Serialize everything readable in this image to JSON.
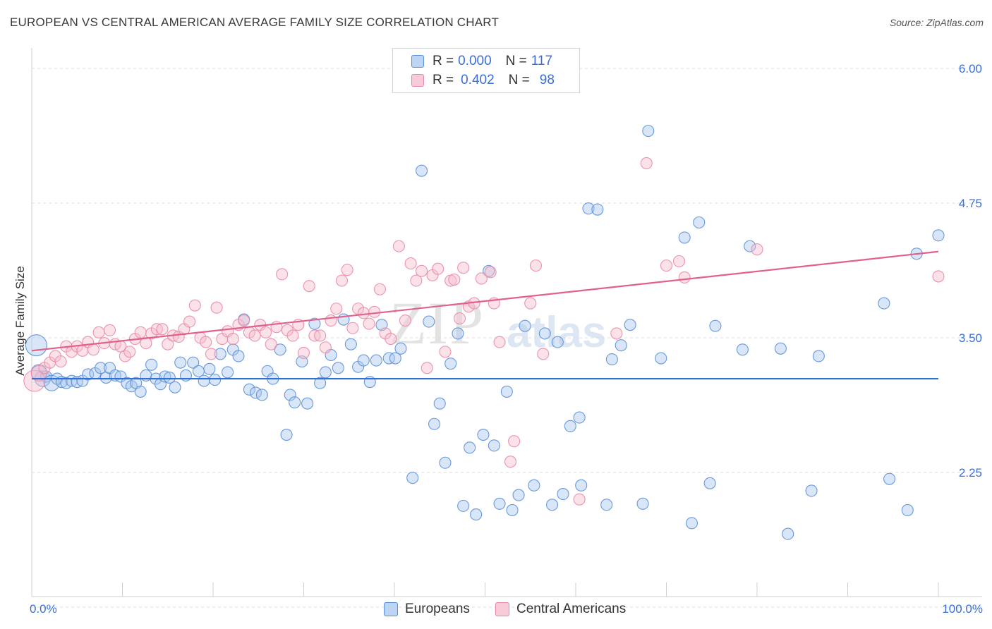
{
  "title": "EUROPEAN VS CENTRAL AMERICAN AVERAGE FAMILY SIZE CORRELATION CHART",
  "source": "Source: ZipAtlas.com",
  "watermark": {
    "zip": "ZIP",
    "atlas": "atlas"
  },
  "legend": {
    "rows": [
      {
        "r_label": "R =",
        "r_value": "0.000",
        "n_label": "N =",
        "n_value": "117",
        "color": "#a9c8f0"
      },
      {
        "r_label": "R =",
        "r_value": "0.402",
        "n_label": "N =",
        "n_value": "98",
        "color": "#f4b6c8"
      }
    ]
  },
  "bottom_legend": {
    "europeans": "Europeans",
    "central_americans": "Central Americans"
  },
  "colors": {
    "blue_fill": "#a9c8f0",
    "blue_stroke": "#5b8fd8",
    "blue_line": "#2f6fd6",
    "pink_fill": "#f6bccd",
    "pink_stroke": "#e88aa6",
    "pink_line": "#e0628c",
    "axis_text": "#3a6fd8",
    "grid": "#dedede"
  },
  "chart_data": {
    "type": "scatter",
    "title": "EUROPEAN VS CENTRAL AMERICAN AVERAGE FAMILY SIZE CORRELATION CHART",
    "xlabel": "",
    "ylabel": "Average Family Size",
    "xlim": [
      0,
      100
    ],
    "ylim": [
      1.0,
      6.2
    ],
    "x_tick_labels": [
      "0.0%",
      "100.0%"
    ],
    "y_ticks": [
      2.25,
      3.5,
      4.75,
      6.0
    ],
    "y_tick_labels": [
      "2.25",
      "3.50",
      "4.75",
      "6.00"
    ],
    "grid": true,
    "series": [
      {
        "name": "Europeans",
        "trend": {
          "x": [
            0,
            100
          ],
          "y": [
            3.12,
            3.12
          ]
        },
        "points": [
          {
            "x": 0.5,
            "y": 3.43,
            "s": 3
          },
          {
            "x": 0.8,
            "y": 3.18,
            "s": 2
          },
          {
            "x": 1.2,
            "y": 3.12,
            "s": 2
          },
          {
            "x": 1.6,
            "y": 3.14
          },
          {
            "x": 2.2,
            "y": 3.08,
            "s": 2
          },
          {
            "x": 2.8,
            "y": 3.12
          },
          {
            "x": 3.3,
            "y": 3.09
          },
          {
            "x": 3.8,
            "y": 3.08
          },
          {
            "x": 4.4,
            "y": 3.1
          },
          {
            "x": 5.0,
            "y": 3.09
          },
          {
            "x": 5.6,
            "y": 3.1
          },
          {
            "x": 6.2,
            "y": 3.16
          },
          {
            "x": 7.0,
            "y": 3.17
          },
          {
            "x": 7.6,
            "y": 3.22
          },
          {
            "x": 8.2,
            "y": 3.13
          },
          {
            "x": 8.6,
            "y": 3.22
          },
          {
            "x": 9.2,
            "y": 3.15
          },
          {
            "x": 9.8,
            "y": 3.14
          },
          {
            "x": 10.5,
            "y": 3.08
          },
          {
            "x": 11.0,
            "y": 3.05
          },
          {
            "x": 11.5,
            "y": 3.08
          },
          {
            "x": 12.0,
            "y": 3.0
          },
          {
            "x": 12.6,
            "y": 3.15
          },
          {
            "x": 13.2,
            "y": 3.25
          },
          {
            "x": 13.7,
            "y": 3.12
          },
          {
            "x": 14.2,
            "y": 3.07
          },
          {
            "x": 14.7,
            "y": 3.14
          },
          {
            "x": 15.2,
            "y": 3.13
          },
          {
            "x": 15.8,
            "y": 3.04
          },
          {
            "x": 16.4,
            "y": 3.27
          },
          {
            "x": 17.0,
            "y": 3.15
          },
          {
            "x": 17.8,
            "y": 3.27
          },
          {
            "x": 18.4,
            "y": 3.19
          },
          {
            "x": 19.0,
            "y": 3.1
          },
          {
            "x": 19.6,
            "y": 3.21
          },
          {
            "x": 20.2,
            "y": 3.11
          },
          {
            "x": 20.8,
            "y": 3.35
          },
          {
            "x": 21.6,
            "y": 3.18
          },
          {
            "x": 22.2,
            "y": 3.39
          },
          {
            "x": 22.8,
            "y": 3.33
          },
          {
            "x": 23.4,
            "y": 3.67
          },
          {
            "x": 24.0,
            "y": 3.02
          },
          {
            "x": 24.7,
            "y": 2.99
          },
          {
            "x": 25.4,
            "y": 2.97
          },
          {
            "x": 26.0,
            "y": 3.19
          },
          {
            "x": 26.6,
            "y": 3.12
          },
          {
            "x": 27.4,
            "y": 3.39
          },
          {
            "x": 28.1,
            "y": 2.6
          },
          {
            "x": 28.5,
            "y": 2.97
          },
          {
            "x": 29.0,
            "y": 2.9
          },
          {
            "x": 29.8,
            "y": 3.28
          },
          {
            "x": 30.4,
            "y": 2.89
          },
          {
            "x": 31.2,
            "y": 3.63
          },
          {
            "x": 31.8,
            "y": 3.08
          },
          {
            "x": 32.4,
            "y": 3.18
          },
          {
            "x": 33.0,
            "y": 3.34
          },
          {
            "x": 33.8,
            "y": 3.22
          },
          {
            "x": 34.4,
            "y": 3.67
          },
          {
            "x": 35.2,
            "y": 3.44
          },
          {
            "x": 36.0,
            "y": 3.23
          },
          {
            "x": 36.6,
            "y": 3.29
          },
          {
            "x": 37.3,
            "y": 3.09
          },
          {
            "x": 38.0,
            "y": 3.29
          },
          {
            "x": 38.6,
            "y": 3.62
          },
          {
            "x": 39.4,
            "y": 3.31
          },
          {
            "x": 40.1,
            "y": 3.31
          },
          {
            "x": 40.7,
            "y": 3.4
          },
          {
            "x": 42.0,
            "y": 2.2
          },
          {
            "x": 43.0,
            "y": 5.05
          },
          {
            "x": 43.8,
            "y": 3.65
          },
          {
            "x": 44.4,
            "y": 2.7
          },
          {
            "x": 45.0,
            "y": 2.89
          },
          {
            "x": 45.6,
            "y": 2.34
          },
          {
            "x": 46.2,
            "y": 3.26
          },
          {
            "x": 47.0,
            "y": 3.54
          },
          {
            "x": 47.6,
            "y": 1.94
          },
          {
            "x": 48.3,
            "y": 2.48
          },
          {
            "x": 49.0,
            "y": 1.86
          },
          {
            "x": 49.8,
            "y": 2.6
          },
          {
            "x": 50.4,
            "y": 4.12
          },
          {
            "x": 51.0,
            "y": 2.5
          },
          {
            "x": 51.6,
            "y": 1.96
          },
          {
            "x": 52.4,
            "y": 3.0
          },
          {
            "x": 53.0,
            "y": 1.9
          },
          {
            "x": 53.7,
            "y": 2.04
          },
          {
            "x": 54.4,
            "y": 3.61
          },
          {
            "x": 55.4,
            "y": 2.13
          },
          {
            "x": 56.6,
            "y": 3.54
          },
          {
            "x": 57.4,
            "y": 1.95
          },
          {
            "x": 58.0,
            "y": 3.46
          },
          {
            "x": 58.6,
            "y": 2.05
          },
          {
            "x": 59.4,
            "y": 2.68
          },
          {
            "x": 60.4,
            "y": 2.76
          },
          {
            "x": 60.6,
            "y": 2.13
          },
          {
            "x": 61.4,
            "y": 4.7
          },
          {
            "x": 62.4,
            "y": 4.69
          },
          {
            "x": 63.4,
            "y": 1.95
          },
          {
            "x": 64.0,
            "y": 3.3
          },
          {
            "x": 65.0,
            "y": 3.43
          },
          {
            "x": 66.0,
            "y": 3.62
          },
          {
            "x": 67.4,
            "y": 1.96
          },
          {
            "x": 68.0,
            "y": 5.42
          },
          {
            "x": 69.4,
            "y": 3.31
          },
          {
            "x": 72.0,
            "y": 4.43
          },
          {
            "x": 72.8,
            "y": 1.78
          },
          {
            "x": 73.6,
            "y": 4.57
          },
          {
            "x": 74.8,
            "y": 2.15
          },
          {
            "x": 75.4,
            "y": 3.61
          },
          {
            "x": 78.4,
            "y": 3.39
          },
          {
            "x": 79.2,
            "y": 4.35
          },
          {
            "x": 82.6,
            "y": 3.4
          },
          {
            "x": 83.4,
            "y": 1.68
          },
          {
            "x": 86.0,
            "y": 2.08
          },
          {
            "x": 86.8,
            "y": 3.33
          },
          {
            "x": 94.0,
            "y": 3.82
          },
          {
            "x": 94.6,
            "y": 2.19
          },
          {
            "x": 96.6,
            "y": 1.9
          },
          {
            "x": 97.6,
            "y": 4.28
          },
          {
            "x": 100.0,
            "y": 4.45
          }
        ]
      },
      {
        "name": "Central Americans",
        "trend": {
          "x": [
            0,
            100
          ],
          "y": [
            3.38,
            4.3
          ]
        },
        "points": [
          {
            "x": 0.3,
            "y": 3.1,
            "s": 3
          },
          {
            "x": 0.8,
            "y": 3.17,
            "s": 2
          },
          {
            "x": 1.4,
            "y": 3.22
          },
          {
            "x": 2.0,
            "y": 3.27
          },
          {
            "x": 2.6,
            "y": 3.33
          },
          {
            "x": 3.2,
            "y": 3.28
          },
          {
            "x": 3.8,
            "y": 3.42
          },
          {
            "x": 4.4,
            "y": 3.37
          },
          {
            "x": 5.0,
            "y": 3.42
          },
          {
            "x": 5.6,
            "y": 3.38
          },
          {
            "x": 6.2,
            "y": 3.46
          },
          {
            "x": 6.8,
            "y": 3.39
          },
          {
            "x": 7.4,
            "y": 3.55
          },
          {
            "x": 8.0,
            "y": 3.45
          },
          {
            "x": 8.6,
            "y": 3.57
          },
          {
            "x": 9.2,
            "y": 3.44
          },
          {
            "x": 9.8,
            "y": 3.42
          },
          {
            "x": 10.3,
            "y": 3.33
          },
          {
            "x": 10.8,
            "y": 3.37
          },
          {
            "x": 11.4,
            "y": 3.49
          },
          {
            "x": 12.0,
            "y": 3.55
          },
          {
            "x": 12.6,
            "y": 3.45
          },
          {
            "x": 13.2,
            "y": 3.54
          },
          {
            "x": 13.8,
            "y": 3.58
          },
          {
            "x": 14.4,
            "y": 3.58
          },
          {
            "x": 15.0,
            "y": 3.44
          },
          {
            "x": 15.6,
            "y": 3.52
          },
          {
            "x": 16.2,
            "y": 3.51
          },
          {
            "x": 16.8,
            "y": 3.58
          },
          {
            "x": 17.4,
            "y": 3.65
          },
          {
            "x": 18.0,
            "y": 3.8
          },
          {
            "x": 18.6,
            "y": 3.5
          },
          {
            "x": 19.2,
            "y": 3.46
          },
          {
            "x": 19.8,
            "y": 3.35
          },
          {
            "x": 20.4,
            "y": 3.78
          },
          {
            "x": 21.0,
            "y": 3.49
          },
          {
            "x": 21.6,
            "y": 3.56
          },
          {
            "x": 22.2,
            "y": 3.49
          },
          {
            "x": 22.8,
            "y": 3.62
          },
          {
            "x": 23.4,
            "y": 3.66
          },
          {
            "x": 24.0,
            "y": 3.55
          },
          {
            "x": 24.6,
            "y": 3.52
          },
          {
            "x": 25.2,
            "y": 3.62
          },
          {
            "x": 25.8,
            "y": 3.55
          },
          {
            "x": 26.4,
            "y": 3.44
          },
          {
            "x": 27.0,
            "y": 3.6
          },
          {
            "x": 27.6,
            "y": 4.09
          },
          {
            "x": 28.2,
            "y": 3.57
          },
          {
            "x": 28.8,
            "y": 3.52
          },
          {
            "x": 29.4,
            "y": 3.62
          },
          {
            "x": 30.0,
            "y": 3.36
          },
          {
            "x": 30.6,
            "y": 3.98
          },
          {
            "x": 31.2,
            "y": 3.52
          },
          {
            "x": 31.8,
            "y": 3.52
          },
          {
            "x": 32.4,
            "y": 3.41
          },
          {
            "x": 33.0,
            "y": 3.66
          },
          {
            "x": 33.6,
            "y": 3.77
          },
          {
            "x": 34.2,
            "y": 4.03
          },
          {
            "x": 34.8,
            "y": 4.13
          },
          {
            "x": 35.4,
            "y": 3.59
          },
          {
            "x": 36.0,
            "y": 3.77
          },
          {
            "x": 36.6,
            "y": 3.73
          },
          {
            "x": 37.2,
            "y": 3.63
          },
          {
            "x": 37.8,
            "y": 3.74
          },
          {
            "x": 38.4,
            "y": 3.95
          },
          {
            "x": 39.0,
            "y": 3.54
          },
          {
            "x": 39.6,
            "y": 3.49
          },
          {
            "x": 40.5,
            "y": 4.35
          },
          {
            "x": 41.2,
            "y": 3.66
          },
          {
            "x": 41.8,
            "y": 4.19
          },
          {
            "x": 42.4,
            "y": 4.03
          },
          {
            "x": 43.0,
            "y": 4.12
          },
          {
            "x": 43.6,
            "y": 3.22
          },
          {
            "x": 44.2,
            "y": 4.08
          },
          {
            "x": 44.8,
            "y": 4.14
          },
          {
            "x": 45.6,
            "y": 3.37
          },
          {
            "x": 46.2,
            "y": 4.03
          },
          {
            "x": 46.6,
            "y": 4.04
          },
          {
            "x": 47.2,
            "y": 3.68
          },
          {
            "x": 47.6,
            "y": 4.15
          },
          {
            "x": 48.2,
            "y": 3.79
          },
          {
            "x": 48.8,
            "y": 3.82
          },
          {
            "x": 49.6,
            "y": 4.05
          },
          {
            "x": 50.6,
            "y": 4.11
          },
          {
            "x": 51.0,
            "y": 3.82
          },
          {
            "x": 51.6,
            "y": 3.46
          },
          {
            "x": 52.8,
            "y": 2.35
          },
          {
            "x": 53.2,
            "y": 2.54
          },
          {
            "x": 55.0,
            "y": 3.82
          },
          {
            "x": 55.6,
            "y": 4.17
          },
          {
            "x": 56.4,
            "y": 3.35
          },
          {
            "x": 60.4,
            "y": 2.0
          },
          {
            "x": 64.5,
            "y": 3.54
          },
          {
            "x": 67.8,
            "y": 5.12
          },
          {
            "x": 70.0,
            "y": 4.17
          },
          {
            "x": 71.4,
            "y": 4.21
          },
          {
            "x": 72.0,
            "y": 4.06
          },
          {
            "x": 80.0,
            "y": 4.32
          },
          {
            "x": 100.0,
            "y": 4.07
          }
        ]
      }
    ]
  }
}
